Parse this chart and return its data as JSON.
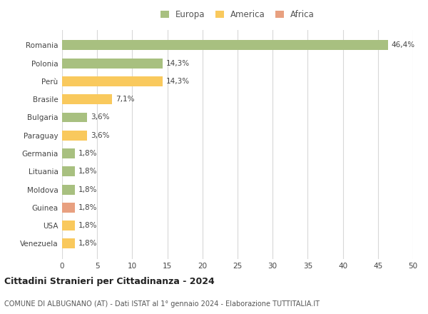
{
  "categories": [
    "Venezuela",
    "USA",
    "Guinea",
    "Moldova",
    "Lituania",
    "Germania",
    "Paraguay",
    "Bulgaria",
    "Brasile",
    "Perù",
    "Polonia",
    "Romania"
  ],
  "values": [
    1.8,
    1.8,
    1.8,
    1.8,
    1.8,
    1.8,
    3.6,
    3.6,
    7.1,
    14.3,
    14.3,
    46.4
  ],
  "labels": [
    "1,8%",
    "1,8%",
    "1,8%",
    "1,8%",
    "1,8%",
    "1,8%",
    "3,6%",
    "3,6%",
    "7,1%",
    "14,3%",
    "14,3%",
    "46,4%"
  ],
  "colors": [
    "#f9c95d",
    "#f9c95d",
    "#e8a080",
    "#a8c080",
    "#a8c080",
    "#a8c080",
    "#f9c95d",
    "#a8c080",
    "#f9c95d",
    "#f9c95d",
    "#a8c080",
    "#a8c080"
  ],
  "legend_labels": [
    "Europa",
    "America",
    "Africa"
  ],
  "legend_colors": [
    "#a8c080",
    "#f9c95d",
    "#e8a080"
  ],
  "title": "Cittadini Stranieri per Cittadinanza - 2024",
  "subtitle": "COMUNE DI ALBUGNANO (AT) - Dati ISTAT al 1° gennaio 2024 - Elaborazione TUTTITALIA.IT",
  "xlim": [
    0,
    50
  ],
  "xticks": [
    0,
    5,
    10,
    15,
    20,
    25,
    30,
    35,
    40,
    45,
    50
  ],
  "bg_color": "#ffffff",
  "grid_color": "#d8d8d8"
}
